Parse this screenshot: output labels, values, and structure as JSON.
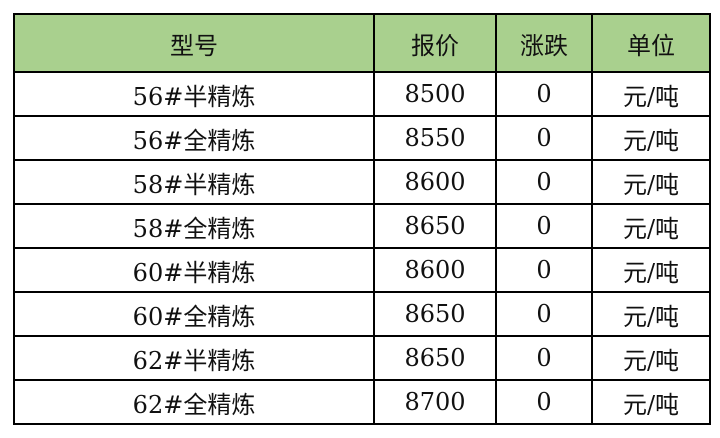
{
  "headers": [
    "型号",
    "报价",
    "涨跌",
    "单位"
  ],
  "header_color": "#a9d08e",
  "rows": [
    [
      "56#半精炼",
      "8500",
      "0",
      "元/吨"
    ],
    [
      "56#全精炼",
      "8550",
      "0",
      "元/吨"
    ],
    [
      "58#半精炼",
      "8600",
      "0",
      "元/吨"
    ],
    [
      "58#全精炼",
      "8650",
      "0",
      "元/吨"
    ],
    [
      "60#半精炼",
      "8600",
      "0",
      "元/吨"
    ],
    [
      "60#全精炼",
      "8650",
      "0",
      "元/吨"
    ],
    [
      "62#半精炼",
      "8650",
      "0",
      "元/吨"
    ],
    [
      "62#全精炼",
      "8700",
      "0",
      "元/吨"
    ]
  ]
}
